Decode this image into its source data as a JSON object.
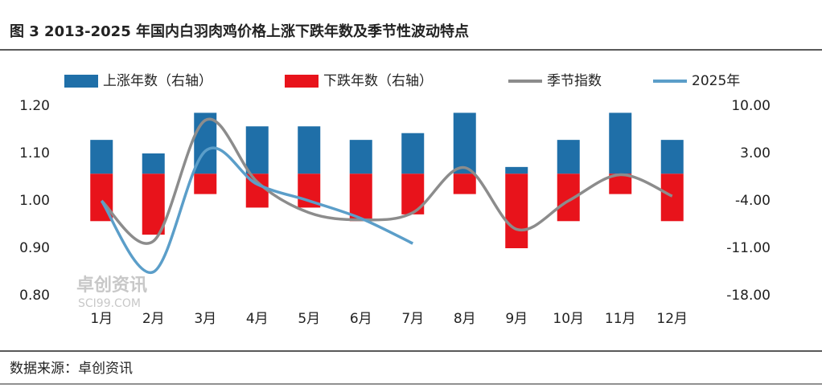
{
  "chart_data": {
    "type": "bar_line",
    "title": "图 3 2013-2025 年国内白羽肉鸡价格上涨下跌年数及季节性波动特点",
    "source": "数据来源：卓创资讯",
    "watermark": [
      "卓创资讯",
      "SCI99.COM"
    ],
    "categories": [
      "1月",
      "2月",
      "3月",
      "4月",
      "5月",
      "6月",
      "7月",
      "8月",
      "9月",
      "10月",
      "11月",
      "12月"
    ],
    "series": [
      {
        "name": "上涨年数（右轴）",
        "kind": "bar",
        "axis": "y2",
        "color": "#1f6fa8",
        "values": [
          5,
          3,
          9,
          7,
          7,
          5,
          6,
          9,
          1,
          5,
          9,
          5
        ]
      },
      {
        "name": "下跌年数（右轴）",
        "kind": "bar",
        "axis": "y2",
        "color": "#e8131b",
        "values": [
          -7,
          -9,
          -3,
          -5,
          -5,
          -7,
          -6,
          -3,
          -11,
          -7,
          -3,
          -7
        ]
      },
      {
        "name": "季节指数",
        "kind": "line",
        "color": "#8c8c8c",
        "values": [
          1.0,
          0.915,
          1.17,
          1.04,
          0.975,
          0.96,
          0.975,
          1.07,
          0.94,
          1.0,
          1.055,
          1.01
        ]
      },
      {
        "name": "2025年",
        "kind": "line",
        "color": "#5b9ec9",
        "values": [
          1.0,
          0.85,
          1.105,
          1.035,
          1.0,
          0.963,
          0.91,
          null,
          null,
          null,
          null,
          null
        ]
      }
    ],
    "ylim": [
      0.8,
      1.2
    ],
    "yticks": [
      {
        "value": 0.8,
        "label": "0.80"
      },
      {
        "value": 0.9,
        "label": "0.90"
      },
      {
        "value": 1.0,
        "label": "1.00"
      },
      {
        "value": 1.1,
        "label": "1.10"
      },
      {
        "value": 1.2,
        "label": "1.20"
      }
    ],
    "y2lim": [
      -18,
      10
    ],
    "y2ticks": [
      {
        "value": -18,
        "label": "-18.00"
      },
      {
        "value": -11,
        "label": "-11.00"
      },
      {
        "value": -4,
        "label": "-4.00"
      },
      {
        "value": 3,
        "label": "3.00"
      },
      {
        "value": 10,
        "label": "10.00"
      }
    ]
  }
}
